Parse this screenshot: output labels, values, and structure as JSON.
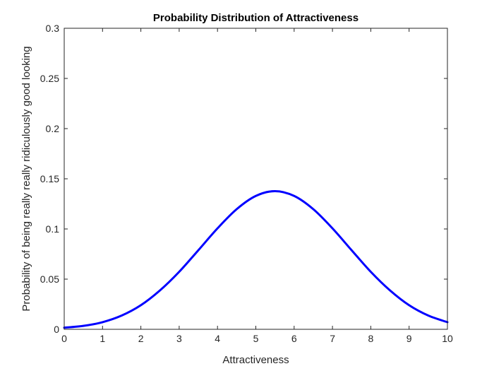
{
  "chart_data": {
    "type": "line",
    "title": "Probability Distribution of Attractiveness",
    "xlabel": "Attractiveness",
    "ylabel": "Probability of being really really ridiculously good looking",
    "xlim": [
      0,
      10
    ],
    "ylim": [
      0,
      0.3
    ],
    "xticks": [
      0,
      1,
      2,
      3,
      4,
      5,
      6,
      7,
      8,
      9,
      10
    ],
    "xtick_labels": [
      "0",
      "1",
      "2",
      "3",
      "4",
      "5",
      "6",
      "7",
      "8",
      "9",
      "10"
    ],
    "yticks": [
      0,
      0.05,
      0.1,
      0.15,
      0.2,
      0.25,
      0.3
    ],
    "ytick_labels": [
      "0",
      "0.05",
      "0.1",
      "0.15",
      "0.2",
      "0.25",
      "0.3"
    ],
    "grid": false,
    "box": true,
    "series": [
      {
        "color": "#0000ff",
        "x": [
          0,
          0.5,
          1,
          1.5,
          2,
          2.5,
          3,
          3.5,
          4,
          4.5,
          5,
          5.5,
          6,
          6.5,
          7,
          7.5,
          8,
          8.5,
          9,
          9.5,
          10
        ],
        "values": [
          0.0016,
          0.0034,
          0.0071,
          0.0137,
          0.024,
          0.0388,
          0.0573,
          0.0788,
          0.1006,
          0.1197,
          0.1329,
          0.1377,
          0.1329,
          0.1197,
          0.1006,
          0.0788,
          0.0573,
          0.0388,
          0.024,
          0.0137,
          0.0071
        ]
      }
    ]
  }
}
